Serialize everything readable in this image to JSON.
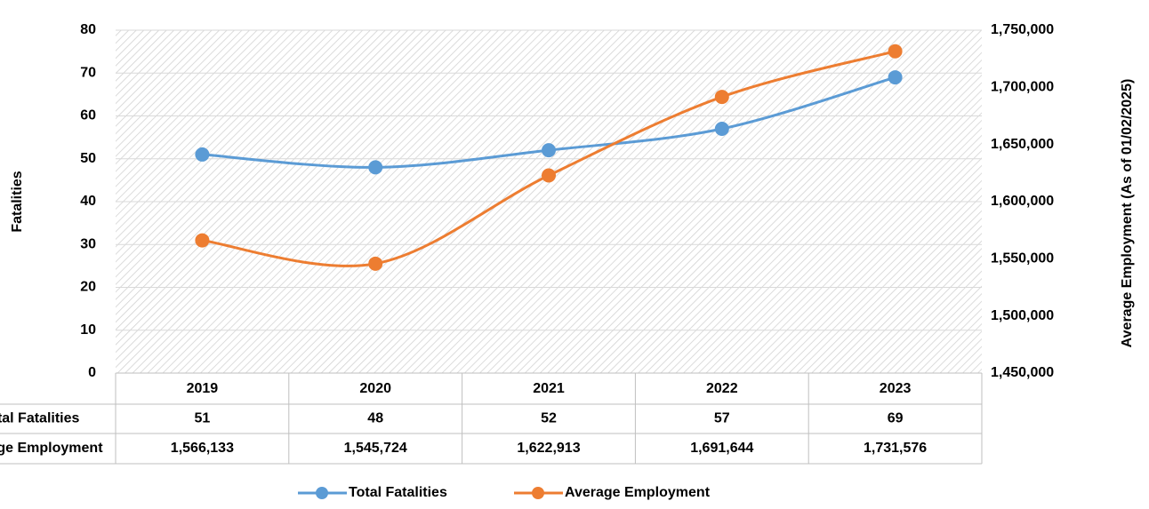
{
  "chart_data": {
    "type": "line",
    "categories": [
      "2019",
      "2020",
      "2021",
      "2022",
      "2023"
    ],
    "series": [
      {
        "name": "Total Fatalities",
        "color": "#5b9bd5",
        "values": [
          51,
          48,
          52,
          57,
          69
        ]
      },
      {
        "name": "Average Employment",
        "color": "#ed7d31",
        "axis": "y2",
        "values": [
          1566133,
          1545724,
          1622913,
          1691644,
          1731576
        ],
        "value_labels": [
          "1,566,133",
          "1,545,724",
          "1,622,913",
          "1,691,644",
          "1,731,576"
        ]
      }
    ],
    "ylabel": "Fatalities",
    "y2label": "Average Employment (As of 01/02/2025)",
    "ylim": [
      0,
      80
    ],
    "yticks": [
      0,
      10,
      20,
      30,
      40,
      50,
      60,
      70,
      80
    ],
    "y2lim": [
      1450000,
      1750000
    ],
    "y2ticks": [
      {
        "value": 1450000,
        "label": "1,450,000"
      },
      {
        "value": 1500000,
        "label": "1,500,000"
      },
      {
        "value": 1550000,
        "label": "1,550,000"
      },
      {
        "value": 1600000,
        "label": "1,600,000"
      },
      {
        "value": 1650000,
        "label": "1,650,000"
      },
      {
        "value": 1700000,
        "label": "1,700,000"
      },
      {
        "value": 1750000,
        "label": "1,750,000"
      }
    ],
    "grid": true,
    "legend": "bottom"
  }
}
